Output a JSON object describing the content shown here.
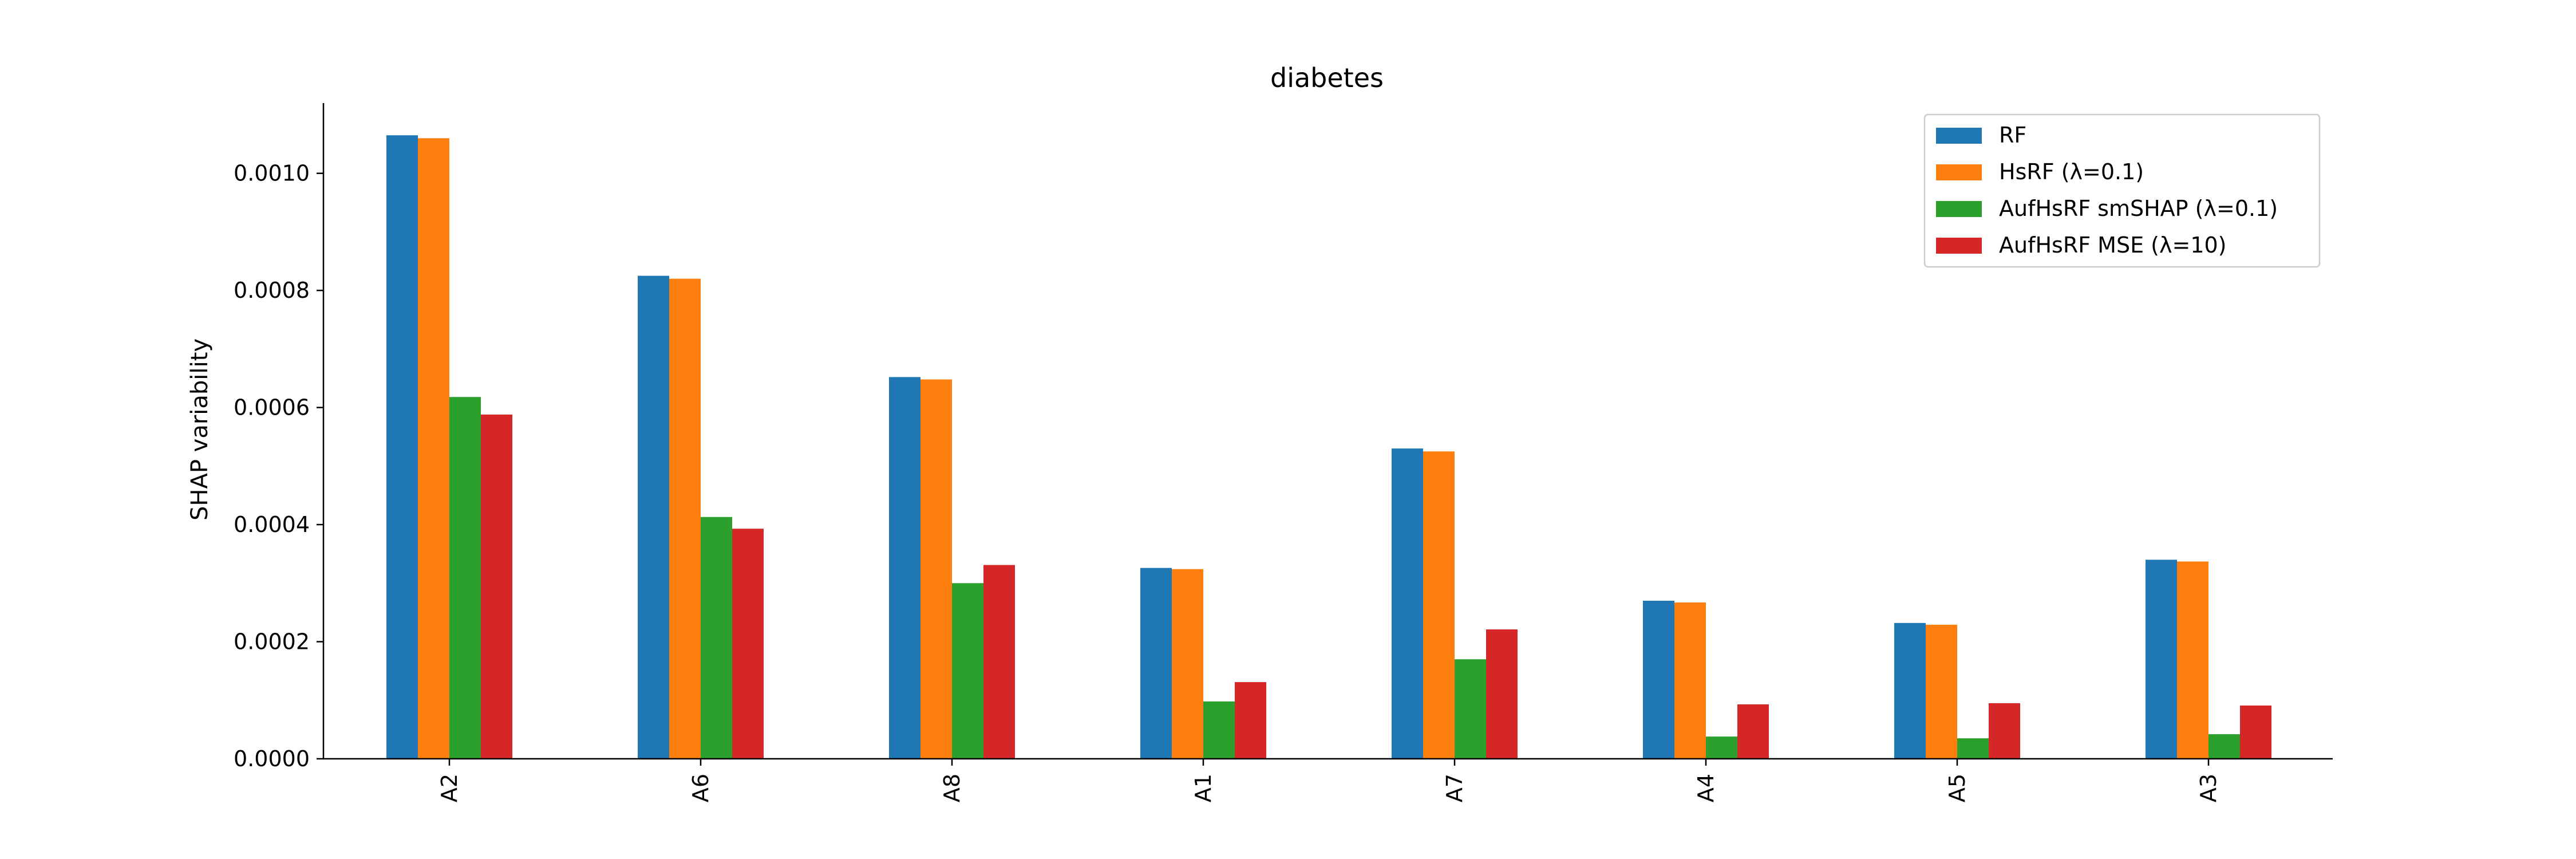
{
  "chart_data": {
    "type": "bar",
    "title": "diabetes",
    "xlabel": "",
    "ylabel": "SHAP variability",
    "categories": [
      "A2",
      "A6",
      "A8",
      "A1",
      "A7",
      "A4",
      "A5",
      "A3"
    ],
    "ylim": [
      0,
      0.00112
    ],
    "yticks": [
      "0.0000",
      "0.0002",
      "0.0004",
      "0.0006",
      "0.0008",
      "0.0010"
    ],
    "grid": false,
    "legend_position": "top-right",
    "series": [
      {
        "name": "RF",
        "color": "#1f77b4",
        "values": [
          0.001065,
          0.000825,
          0.000652,
          0.000326,
          0.00053,
          0.00027,
          0.000232,
          0.00034
        ]
      },
      {
        "name": "HsRF (λ=0.1)",
        "color": "#ff7f0e",
        "values": [
          0.00106,
          0.00082,
          0.000648,
          0.000324,
          0.000525,
          0.000267,
          0.000229,
          0.000337
        ]
      },
      {
        "name": "AufHsRF smSHAP (λ=0.1)",
        "color": "#2ca02c",
        "values": [
          0.000618,
          0.000413,
          0.0003,
          9.8e-05,
          0.00017,
          3.8e-05,
          3.5e-05,
          4.2e-05
        ]
      },
      {
        "name": "AufHsRF MSE (λ=10)",
        "color": "#d62728",
        "values": [
          0.000588,
          0.000393,
          0.000331,
          0.000131,
          0.000221,
          9.3e-05,
          9.5e-05,
          9.1e-05
        ]
      }
    ]
  }
}
